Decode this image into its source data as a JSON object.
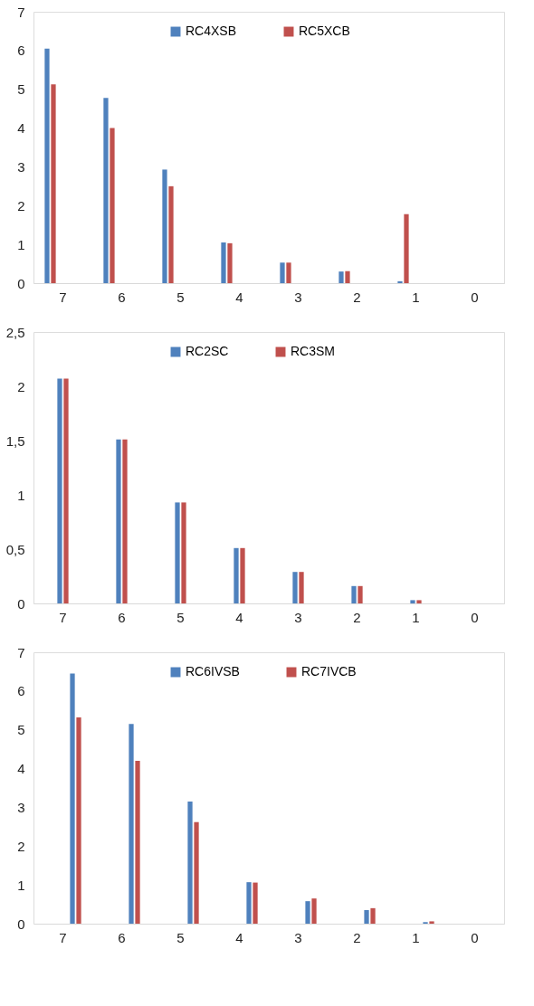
{
  "chart_data": [
    {
      "type": "bar",
      "categories": [
        "7",
        "6",
        "5",
        "4",
        "3",
        "2",
        "1",
        "0"
      ],
      "ylim": [
        0,
        7
      ],
      "yticks": [
        0,
        1,
        2,
        3,
        4,
        5,
        6,
        7
      ],
      "grid": false,
      "legend": "top",
      "series": [
        {
          "name": "RC4XSB",
          "color": "#4f81bd",
          "values": [
            6.05,
            4.78,
            2.93,
            1.05,
            0.53,
            0.3,
            0.05,
            0
          ]
        },
        {
          "name": "RC5XCB",
          "color": "#c0504d",
          "values": [
            5.13,
            4.0,
            2.5,
            1.03,
            0.53,
            0.31,
            1.78,
            0
          ]
        }
      ]
    },
    {
      "type": "bar",
      "categories": [
        "7",
        "6",
        "5",
        "4",
        "3",
        "2",
        "1",
        "0"
      ],
      "ylim": [
        0,
        2.5
      ],
      "yticks": [
        0,
        {
          "value": 0.5,
          "label": "0,5"
        },
        1,
        {
          "value": 1.5,
          "label": "1,5"
        },
        2,
        {
          "value": 2.5,
          "label": "2,5"
        }
      ],
      "grid": false,
      "legend": "top",
      "series": [
        {
          "name": "RC2SC",
          "color": "#4f81bd",
          "values": [
            2.07,
            1.51,
            0.93,
            0.51,
            0.29,
            0.16,
            0.03,
            0
          ]
        },
        {
          "name": "RC3SM",
          "color": "#c0504d",
          "values": [
            2.07,
            1.51,
            0.93,
            0.51,
            0.29,
            0.16,
            0.03,
            0
          ]
        }
      ]
    },
    {
      "type": "bar",
      "categories": [
        "7",
        "6",
        "5",
        "4",
        "3",
        "2",
        "1",
        "0"
      ],
      "ylim": [
        0,
        7
      ],
      "yticks": [
        0,
        1,
        2,
        3,
        4,
        5,
        6,
        7
      ],
      "grid": false,
      "legend": "top",
      "series": [
        {
          "name": "RC6IVSB",
          "color": "#4f81bd",
          "values": [
            6.45,
            5.15,
            3.15,
            1.07,
            0.58,
            0.35,
            0.04,
            0
          ]
        },
        {
          "name": "RC7IVCB",
          "color": "#c0504d",
          "values": [
            5.32,
            4.2,
            2.62,
            1.06,
            0.65,
            0.4,
            0.06,
            0
          ]
        }
      ]
    }
  ]
}
